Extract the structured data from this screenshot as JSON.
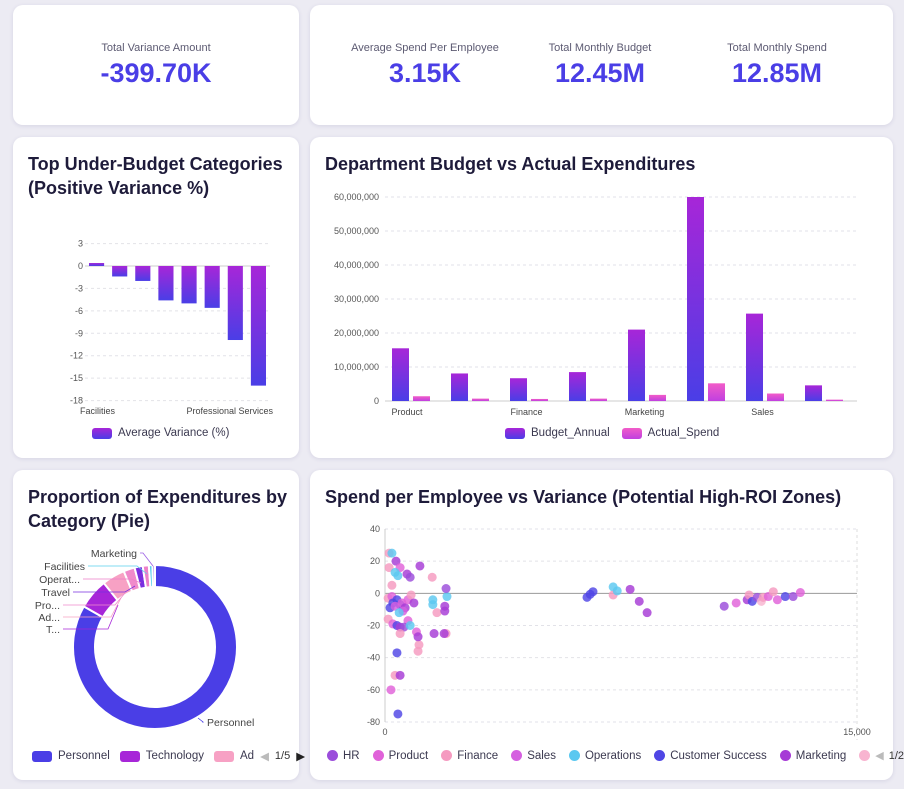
{
  "kpis_left": [
    {
      "label": "Total Variance Amount",
      "value": "-399.70K"
    }
  ],
  "kpis_right": [
    {
      "label": "Average Spend Per Employee",
      "value": "3.15K"
    },
    {
      "label": "Total Monthly Budget",
      "value": "12.45M"
    },
    {
      "label": "Total Monthly Spend",
      "value": "12.85M"
    }
  ],
  "colors": {
    "accent": "#4a3ee6",
    "purple": "#a726d8",
    "pink": "#f25cc8"
  },
  "chart_data": [
    {
      "type": "bar",
      "title": "Top Under-Budget Categories (Positive Variance %)",
      "categories": [
        "Facilities",
        "",
        "",
        "",
        "",
        "",
        "Professional Services",
        ""
      ],
      "tick_labels": [
        "Facilities",
        "Professional Services"
      ],
      "values": [
        0.4,
        -1.4,
        -2.0,
        -4.6,
        -5.0,
        -5.6,
        -9.9,
        -16.0
      ],
      "ylim": [
        -18,
        3
      ],
      "yticks": [
        "3",
        "0",
        "-3",
        "-6",
        "-9",
        "-12",
        "-15",
        "-18"
      ],
      "legend": [
        "Average Variance (%)"
      ],
      "legend_position": "bottom",
      "grid": true
    },
    {
      "type": "bar",
      "title": "Department Budget vs Actual Expenditures",
      "categories": [
        "Product",
        "",
        "Finance",
        "",
        "Marketing",
        "",
        "Sales",
        ""
      ],
      "series": [
        {
          "name": "Budget_Annual",
          "values": [
            15500000,
            8100000,
            6700000,
            8500000,
            21000000,
            60000000,
            25700000,
            4600000
          ]
        },
        {
          "name": "Actual_Spend",
          "values": [
            1400000,
            700000,
            600000,
            700000,
            1800000,
            5200000,
            2200000,
            400000
          ]
        }
      ],
      "ylim": [
        0,
        60000000
      ],
      "yticks": [
        "0",
        "10,000,000",
        "20,000,000",
        "30,000,000",
        "40,000,000",
        "50,000,000",
        "60,000,000"
      ],
      "legend_position": "bottom",
      "grid": true
    },
    {
      "type": "pie",
      "title": "Proportion of Expenditures by Category (Pie)",
      "slices": [
        {
          "label": "Personnel",
          "value": 83
        },
        {
          "label": "T...",
          "value": 6
        },
        {
          "label": "Ad...",
          "value": 4.5
        },
        {
          "label": "Pro...",
          "value": 2.2
        },
        {
          "label": "Travel",
          "value": 1.6
        },
        {
          "label": "Operat...",
          "value": 1.2
        },
        {
          "label": "Facilities",
          "value": 0.7
        },
        {
          "label": "Marketing",
          "value": 0.5
        }
      ],
      "legend": [
        "Personnel",
        "Technology",
        "Ad"
      ],
      "legend_page": "1/5"
    },
    {
      "type": "scatter",
      "title": "Spend per Employee vs Variance (Potential High-ROI Zones)",
      "xlim": [
        0,
        15000
      ],
      "ylim": [
        -80,
        40
      ],
      "xticks": [
        "0",
        "15,000"
      ],
      "yticks": [
        "40",
        "20",
        "0",
        "-20",
        "-40",
        "-60",
        "-80"
      ],
      "legend": [
        "HR",
        "Product",
        "Finance",
        "Sales",
        "Operations",
        "Customer Success",
        "Marketing"
      ],
      "legend_page": "1/2",
      "points": [
        [
          130,
          25,
          2
        ],
        [
          220,
          25,
          4
        ],
        [
          350,
          20,
          6
        ],
        [
          480,
          16,
          1
        ],
        [
          130,
          16,
          2
        ],
        [
          320,
          13,
          4
        ],
        [
          220,
          5,
          2
        ],
        [
          410,
          11,
          4
        ],
        [
          700,
          12,
          6
        ],
        [
          800,
          10,
          0
        ],
        [
          1110,
          17,
          6
        ],
        [
          100,
          -3,
          2
        ],
        [
          220,
          -2,
          1
        ],
        [
          250,
          -6,
          5
        ],
        [
          380,
          -4,
          5
        ],
        [
          480,
          -7,
          5
        ],
        [
          160,
          -9,
          5
        ],
        [
          320,
          -8,
          3
        ],
        [
          540,
          -6,
          1
        ],
        [
          640,
          -9,
          6
        ],
        [
          730,
          -4,
          1
        ],
        [
          830,
          -1,
          2
        ],
        [
          920,
          -6,
          6
        ],
        [
          570,
          -11,
          3
        ],
        [
          450,
          -12,
          4
        ],
        [
          100,
          -16,
          2
        ],
        [
          250,
          -19,
          1
        ],
        [
          380,
          -20,
          5
        ],
        [
          480,
          -21,
          6
        ],
        [
          730,
          -17,
          1
        ],
        [
          600,
          -21,
          0
        ],
        [
          800,
          -20,
          4
        ],
        [
          480,
          -25,
          2
        ],
        [
          1000,
          -24,
          1
        ],
        [
          1080,
          -32,
          2
        ],
        [
          1050,
          -27,
          6
        ],
        [
          380,
          -37,
          5
        ],
        [
          1050,
          -36,
          2
        ],
        [
          320,
          -51,
          2
        ],
        [
          480,
          -51,
          6
        ],
        [
          190,
          -60,
          1
        ],
        [
          410,
          -75,
          5
        ],
        [
          1500,
          10,
          2
        ],
        [
          1520,
          -4,
          4
        ],
        [
          1520,
          -7,
          4
        ],
        [
          1650,
          -12,
          2
        ],
        [
          1900,
          -11,
          6
        ],
        [
          1900,
          -8,
          6
        ],
        [
          1970,
          -2,
          4
        ],
        [
          1940,
          3,
          0
        ],
        [
          1560,
          -25,
          6
        ],
        [
          1940,
          -25,
          2
        ],
        [
          1880,
          -25,
          6
        ],
        [
          6420,
          -2.5,
          5
        ],
        [
          6520,
          -0.6,
          5
        ],
        [
          6610,
          1,
          5
        ],
        [
          7250,
          4,
          4
        ],
        [
          7250,
          -1,
          2
        ],
        [
          7380,
          1.5,
          4
        ],
        [
          7790,
          2.5,
          6
        ],
        [
          8080,
          -5,
          6
        ],
        [
          8330,
          -12,
          6
        ],
        [
          10780,
          -8,
          0
        ],
        [
          11160,
          -6,
          1
        ],
        [
          11510,
          -4,
          6
        ],
        [
          11570,
          -1,
          2
        ],
        [
          11670,
          -5,
          5
        ],
        [
          11830,
          -2.5,
          0
        ],
        [
          11960,
          -5,
          7
        ],
        [
          12020,
          -2.5,
          2
        ],
        [
          12180,
          -2,
          1
        ],
        [
          12340,
          1,
          2
        ],
        [
          12470,
          -4,
          1
        ],
        [
          12720,
          -2,
          5
        ],
        [
          12970,
          -2,
          0
        ],
        [
          13200,
          0.5,
          1
        ]
      ]
    }
  ]
}
